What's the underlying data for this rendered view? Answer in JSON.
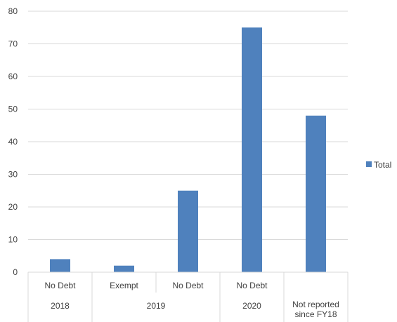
{
  "chart_data": {
    "type": "bar",
    "title": "",
    "xlabel": "",
    "ylabel": "",
    "ylim": [
      0,
      80
    ],
    "yticks": [
      0,
      10,
      20,
      30,
      40,
      50,
      60,
      70,
      80
    ],
    "grid": true,
    "legend_position": "right",
    "bar_color": "#4f81bd",
    "categories": [
      {
        "label": "No Debt",
        "group": "2018"
      },
      {
        "label": "Exempt",
        "group": "2019"
      },
      {
        "label": "No Debt",
        "group": "2019"
      },
      {
        "label": "No Debt",
        "group": "2020"
      },
      {
        "label": "",
        "group": "Not reported since FY18"
      }
    ],
    "groups": [
      {
        "label": "2018",
        "lines": [
          "2018"
        ],
        "count": 1
      },
      {
        "label": "2019",
        "lines": [
          "2019"
        ],
        "count": 2
      },
      {
        "label": "2020",
        "lines": [
          "2020"
        ],
        "count": 1
      },
      {
        "label": "Not reported since FY18",
        "lines": [
          "Not reported",
          "since FY18"
        ],
        "count": 1
      }
    ],
    "series": [
      {
        "name": "Total",
        "values": [
          4,
          2,
          25,
          75,
          48
        ]
      }
    ]
  }
}
